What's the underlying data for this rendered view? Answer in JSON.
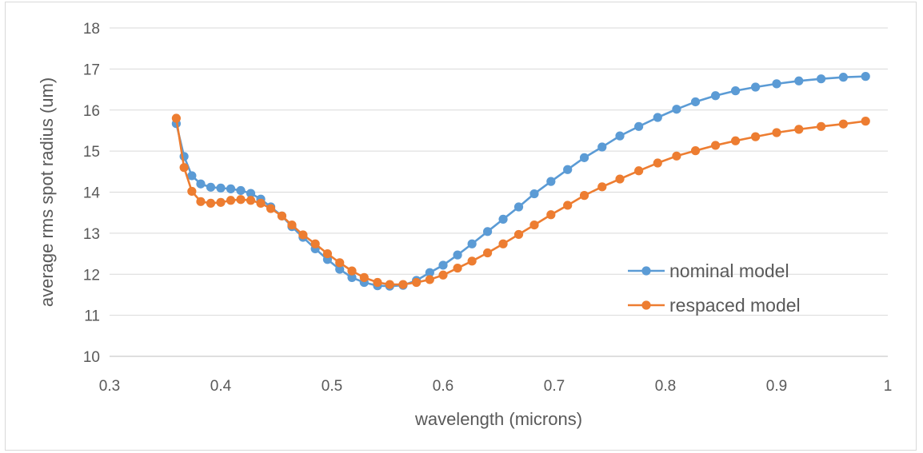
{
  "chart_data": {
    "type": "line",
    "title": "",
    "xlabel": "wavelength (microns)",
    "ylabel": "average rms spot radius (um)",
    "xlim": [
      0.3,
      1.0
    ],
    "ylim": [
      10,
      18
    ],
    "x_ticks": [
      "0.3",
      "0.4",
      "0.5",
      "0.6",
      "0.7",
      "0.8",
      "0.9",
      "1"
    ],
    "y_ticks": [
      "10",
      "11",
      "12",
      "13",
      "14",
      "15",
      "16",
      "17",
      "18"
    ],
    "grid": "horizontal",
    "legend_position": "right",
    "series": [
      {
        "name": "nominal model",
        "color": "#5b9bd5",
        "x": [
          0.36,
          0.367,
          0.374,
          0.382,
          0.391,
          0.4,
          0.409,
          0.418,
          0.427,
          0.436,
          0.445,
          0.455,
          0.464,
          0.474,
          0.485,
          0.496,
          0.507,
          0.518,
          0.529,
          0.541,
          0.552,
          0.564,
          0.576,
          0.588,
          0.6,
          0.613,
          0.626,
          0.64,
          0.654,
          0.668,
          0.682,
          0.697,
          0.712,
          0.727,
          0.743,
          0.759,
          0.776,
          0.793,
          0.81,
          0.827,
          0.845,
          0.863,
          0.881,
          0.9,
          0.92,
          0.94,
          0.96,
          0.98
        ],
        "y": [
          15.67,
          14.87,
          14.4,
          14.2,
          14.12,
          14.1,
          14.08,
          14.04,
          13.97,
          13.83,
          13.64,
          13.42,
          13.16,
          12.9,
          12.62,
          12.36,
          12.12,
          11.92,
          11.8,
          11.72,
          11.71,
          11.73,
          11.85,
          12.04,
          12.22,
          12.47,
          12.74,
          13.04,
          13.34,
          13.64,
          13.96,
          14.26,
          14.55,
          14.84,
          15.1,
          15.37,
          15.6,
          15.82,
          16.02,
          16.2,
          16.35,
          16.47,
          16.56,
          16.64,
          16.71,
          16.76,
          16.8,
          16.82
        ]
      },
      {
        "name": "respaced model",
        "color": "#ed7d31",
        "x": [
          0.36,
          0.367,
          0.374,
          0.382,
          0.391,
          0.4,
          0.409,
          0.418,
          0.427,
          0.436,
          0.445,
          0.455,
          0.464,
          0.474,
          0.485,
          0.496,
          0.507,
          0.518,
          0.529,
          0.541,
          0.552,
          0.564,
          0.576,
          0.588,
          0.6,
          0.613,
          0.626,
          0.64,
          0.654,
          0.668,
          0.682,
          0.697,
          0.712,
          0.727,
          0.743,
          0.759,
          0.776,
          0.793,
          0.81,
          0.827,
          0.845,
          0.863,
          0.881,
          0.9,
          0.92,
          0.94,
          0.96,
          0.98
        ],
        "y": [
          15.8,
          14.6,
          14.02,
          13.77,
          13.73,
          13.75,
          13.8,
          13.82,
          13.8,
          13.73,
          13.6,
          13.42,
          13.2,
          12.96,
          12.74,
          12.5,
          12.28,
          12.08,
          11.92,
          11.8,
          11.75,
          11.75,
          11.8,
          11.87,
          11.98,
          12.15,
          12.32,
          12.52,
          12.74,
          12.97,
          13.2,
          13.45,
          13.68,
          13.92,
          14.13,
          14.32,
          14.52,
          14.71,
          14.88,
          15.01,
          15.14,
          15.25,
          15.35,
          15.45,
          15.53,
          15.6,
          15.66,
          15.73
        ]
      }
    ]
  }
}
